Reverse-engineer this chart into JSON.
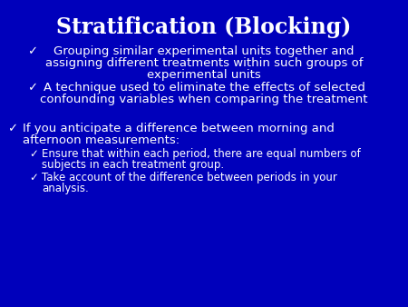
{
  "title": "Stratification (Blocking)",
  "background_color": "#0000BB",
  "text_color": "#FFFFFF",
  "title_fontsize": 17,
  "body_fontsize": 9.5,
  "sub_fontsize": 8.5,
  "bullet1_line1": "Grouping similar experimental units together and",
  "bullet1_line2": "assigning different treatments within such groups of",
  "bullet1_line3": "experimental units",
  "bullet2_line1": "A technique used to eliminate the effects of selected",
  "bullet2_line2": "confounding variables when comparing the treatment",
  "bullet3_line1": "If you anticipate a difference between morning and",
  "bullet3_line2": "afternoon measurements:",
  "sub1_line1": "Ensure that within each period, there are equal numbers of",
  "sub1_line2": "subjects in each treatment group.",
  "sub2_line1": "Take account of the difference between periods in your",
  "sub2_line2": "analysis.",
  "checkmark": "✓"
}
